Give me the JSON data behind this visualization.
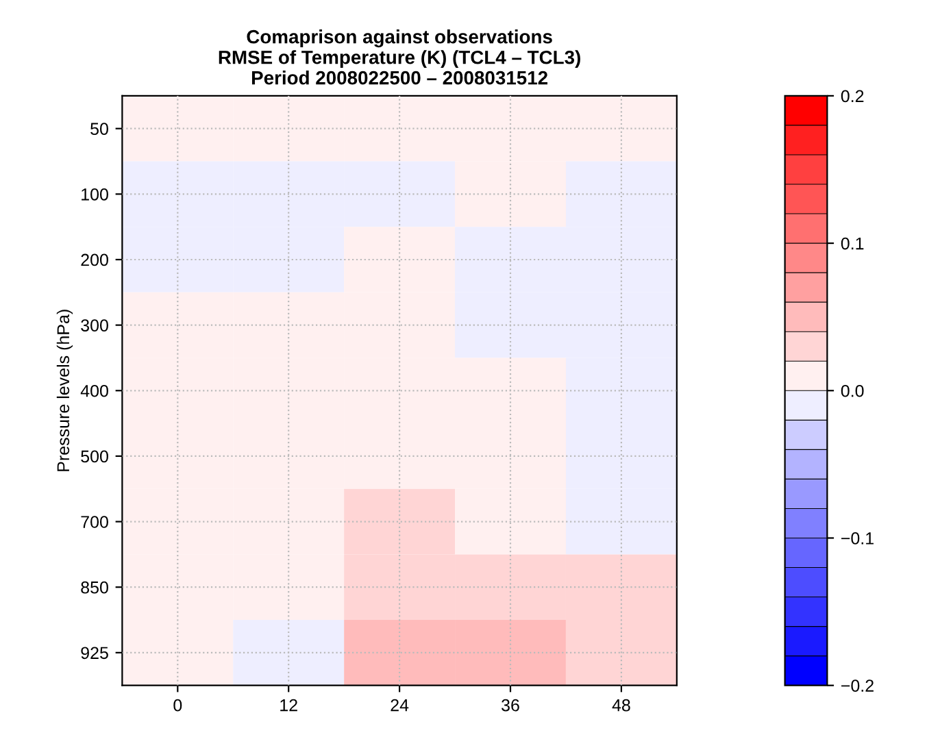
{
  "chart_data": {
    "type": "heatmap",
    "title": "Comaprison against observations\nRMSE of Temperature (K) (TCL4 – TCL3)\nPeriod 2008022500 – 2008031512",
    "ylabel": "Pressure levels (hPa)",
    "categories": [
      "0",
      "12",
      "24",
      "36",
      "48"
    ],
    "y_categories": [
      "50",
      "100",
      "200",
      "300",
      "400",
      "500",
      "700",
      "850",
      "925"
    ],
    "cells": [
      [
        0.01,
        0.005,
        0.005,
        0.01,
        0.01
      ],
      [
        -0.005,
        -0.01,
        -0.005,
        0.005,
        -0.005
      ],
      [
        -0.005,
        -0.01,
        0.002,
        -0.005,
        -0.005
      ],
      [
        0.005,
        0.005,
        0.01,
        -0.002,
        -0.01
      ],
      [
        0.01,
        0.01,
        0.01,
        0.005,
        -0.002
      ],
      [
        0.01,
        0.01,
        0.01,
        0.005,
        -0.01
      ],
      [
        0.01,
        0.01,
        0.02,
        0.01,
        -0.002
      ],
      [
        0.01,
        0.01,
        0.03,
        0.02,
        0.02
      ],
      [
        0.005,
        -0.005,
        0.04,
        0.05,
        0.03
      ]
    ],
    "clim": [
      -0.2,
      0.2
    ],
    "cticks": [
      {
        "value": -0.2,
        "label": "−0.2"
      },
      {
        "value": -0.1,
        "label": "−0.1"
      },
      {
        "value": 0.0,
        "label": "0.0"
      },
      {
        "value": 0.1,
        "label": "0.1"
      },
      {
        "value": 0.2,
        "label": "0.2"
      }
    ],
    "colors": [
      "#0000ff",
      "#1a1aff",
      "#3333ff",
      "#4d4dff",
      "#6666ff",
      "#8080ff",
      "#9999ff",
      "#b3b3ff",
      "#ccccff",
      "#eeeeff",
      "#fff0f0",
      "#ffd5d5",
      "#ffbbbb",
      "#ffa0a0",
      "#ff8888",
      "#ff7070",
      "#ff5555",
      "#ff4040",
      "#ff2020",
      "#ff0000"
    ],
    "grid": true
  }
}
